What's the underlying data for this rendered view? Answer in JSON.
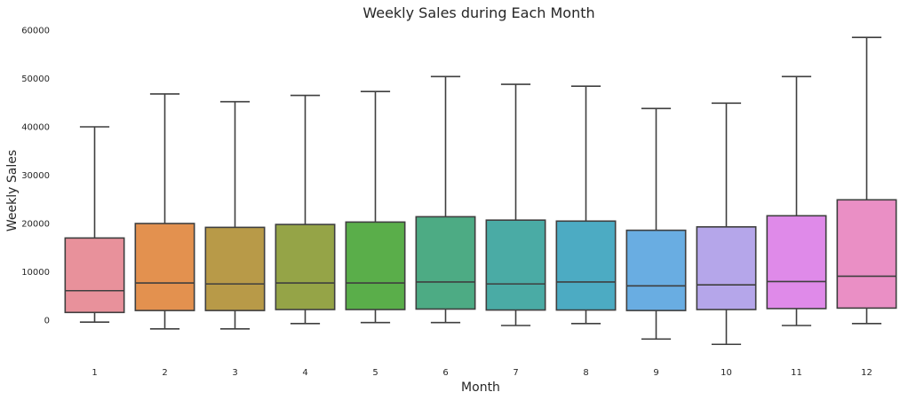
{
  "chart_data": {
    "type": "box",
    "title": "Weekly Sales during Each Month",
    "xlabel": "Month",
    "ylabel": "Weekly Sales",
    "ylim": [
      -9000,
      60500
    ],
    "yticks": [
      0,
      10000,
      20000,
      30000,
      40000,
      50000,
      60000
    ],
    "grid": false,
    "categories": [
      "1",
      "2",
      "3",
      "4",
      "5",
      "6",
      "7",
      "8",
      "9",
      "10",
      "11",
      "12"
    ],
    "boxes": [
      {
        "category": "1",
        "whislo": -400,
        "q1": 1600,
        "med": 6100,
        "q3": 17000,
        "whishi": 40000,
        "color": "#e8919b"
      },
      {
        "category": "2",
        "whislo": -1800,
        "q1": 2000,
        "med": 7700,
        "q3": 20000,
        "whishi": 46800,
        "color": "#e3914f"
      },
      {
        "category": "3",
        "whislo": -1800,
        "q1": 2000,
        "med": 7500,
        "q3": 19200,
        "whishi": 45200,
        "color": "#b89a48"
      },
      {
        "category": "4",
        "whislo": -700,
        "q1": 2200,
        "med": 7700,
        "q3": 19800,
        "whishi": 46500,
        "color": "#95a447"
      },
      {
        "category": "5",
        "whislo": -500,
        "q1": 2200,
        "med": 7700,
        "q3": 20300,
        "whishi": 47300,
        "color": "#5aae4a"
      },
      {
        "category": "6",
        "whislo": -500,
        "q1": 2300,
        "med": 7900,
        "q3": 21400,
        "whishi": 50400,
        "color": "#4dab84"
      },
      {
        "category": "7",
        "whislo": -1100,
        "q1": 2100,
        "med": 7500,
        "q3": 20700,
        "whishi": 48800,
        "color": "#4aaba5"
      },
      {
        "category": "8",
        "whislo": -700,
        "q1": 2100,
        "med": 7900,
        "q3": 20500,
        "whishi": 48400,
        "color": "#4cabc3"
      },
      {
        "category": "9",
        "whislo": -3900,
        "q1": 2000,
        "med": 7100,
        "q3": 18600,
        "whishi": 43800,
        "color": "#69ade2"
      },
      {
        "category": "10",
        "whislo": -5000,
        "q1": 2200,
        "med": 7300,
        "q3": 19300,
        "whishi": 44900,
        "color": "#b5a6ea"
      },
      {
        "category": "11",
        "whislo": -1100,
        "q1": 2400,
        "med": 8000,
        "q3": 21600,
        "whishi": 50400,
        "color": "#df8ae9"
      },
      {
        "category": "12",
        "whislo": -700,
        "q1": 2500,
        "med": 9100,
        "q3": 24900,
        "whishi": 58500,
        "color": "#ea8fc5"
      }
    ]
  }
}
